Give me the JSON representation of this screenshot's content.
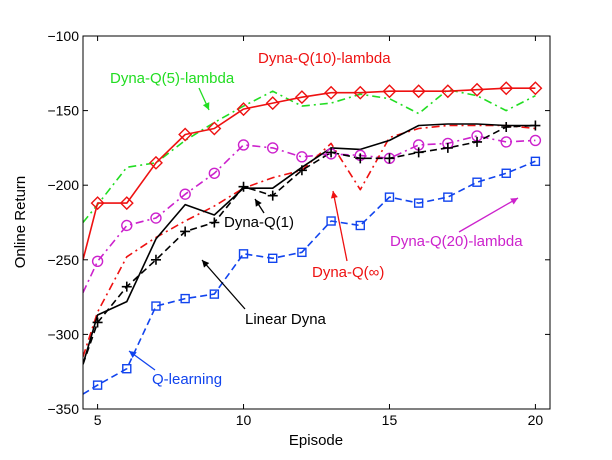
{
  "chart_data": {
    "type": "line",
    "title": "",
    "xlabel": "Episode",
    "ylabel": "Online Return",
    "xlim": [
      4.5,
      20.5
    ],
    "ylim": [
      -350,
      -100
    ],
    "xticks": [
      5,
      10,
      15,
      20
    ],
    "yticks": [
      -350,
      -300,
      -250,
      -200,
      -150,
      -100
    ],
    "grid": false,
    "legend": "none",
    "series": [
      {
        "name": "Dyna-Q(5)-lambda",
        "color": "#22dd22",
        "style": "dashdot",
        "marker": "none",
        "x": [
          4.5,
          5,
          6,
          7,
          8,
          9,
          10,
          11,
          12,
          13,
          14,
          15,
          16,
          17,
          18,
          19,
          20
        ],
        "y": [
          -225,
          -213,
          -188,
          -185,
          -170,
          -158,
          -147,
          -137,
          -147,
          -145,
          -139,
          -142,
          -152,
          -136,
          -140,
          -150,
          -140
        ]
      },
      {
        "name": "Dyna-Q(10)-lambda",
        "color": "#ee1111",
        "style": "solid",
        "marker": "diamond",
        "x": [
          4.5,
          5,
          6,
          7,
          8,
          9,
          10,
          11,
          12,
          13,
          14,
          15,
          16,
          17,
          18,
          19,
          20
        ],
        "y": [
          -250,
          -212,
          -212,
          -185,
          -166,
          -162,
          -149,
          -145,
          -141,
          -138,
          -138,
          -137,
          -137,
          -137,
          -136,
          -135,
          -135
        ]
      },
      {
        "name": "Dyna-Q(20)-lambda",
        "color": "#cc22cc",
        "style": "dashdot",
        "marker": "circle",
        "x": [
          4.5,
          5,
          6,
          7,
          8,
          9,
          10,
          11,
          12,
          13,
          14,
          15,
          16,
          17,
          18,
          19,
          20
        ],
        "y": [
          -272,
          -251,
          -227,
          -222,
          -206,
          -192,
          -173,
          -175,
          -181,
          -179,
          -180,
          -182,
          -173,
          -172,
          -167,
          -171,
          -170
        ]
      },
      {
        "name": "Dyna-Q(∞)",
        "color": "#ee1111",
        "style": "dashdot",
        "marker": "none",
        "x": [
          4.5,
          5,
          6,
          7,
          8,
          9,
          10,
          11,
          12,
          13,
          14,
          15,
          16,
          17,
          18,
          19,
          20
        ],
        "y": [
          -315,
          -285,
          -248,
          -235,
          -224,
          -214,
          -202,
          -195,
          -190,
          -172,
          -203,
          -168,
          -162,
          -160,
          -160,
          -160,
          -162
        ]
      },
      {
        "name": "Linear Dyna",
        "color": "#000000",
        "style": "solid",
        "marker": "none",
        "x": [
          4.5,
          5,
          6,
          7,
          8,
          9,
          10,
          11,
          12,
          13,
          14,
          15,
          16,
          17,
          18,
          19,
          20
        ],
        "y": [
          -320,
          -287,
          -278,
          -236,
          -213,
          -220,
          -202,
          -202,
          -188,
          -175,
          -176,
          -170,
          -160,
          -159,
          -159,
          -160,
          -160
        ]
      },
      {
        "name": "Dyna-Q(1)",
        "color": "#000000",
        "style": "dashed",
        "marker": "plus",
        "x": [
          4.5,
          5,
          6,
          7,
          8,
          9,
          10,
          11,
          12,
          13,
          14,
          15,
          16,
          17,
          18,
          19,
          20
        ],
        "y": [
          -320,
          -292,
          -268,
          -250,
          -231,
          -225,
          -201,
          -207,
          -190,
          -178,
          -182,
          -182,
          -178,
          -175,
          -171,
          -161,
          -160
        ]
      },
      {
        "name": "Q-learning",
        "color": "#1144ee",
        "style": "dashed",
        "marker": "square",
        "x": [
          4.5,
          5,
          6,
          7,
          8,
          9,
          10,
          11,
          12,
          13,
          14,
          15,
          16,
          17,
          18,
          19,
          20
        ],
        "y": [
          -340,
          -334,
          -323,
          -281,
          -276,
          -273,
          -246,
          -249,
          -245,
          -224,
          -227,
          -208,
          -212,
          -208,
          -198,
          -192,
          -184
        ]
      }
    ],
    "annotations": [
      {
        "text": "Dyna-Q(10)-lambda",
        "color": "#ee1111",
        "series": "Dyna-Q(10)-lambda"
      },
      {
        "text": "Dyna-Q(5)-lambda",
        "color": "#22dd22",
        "series": "Dyna-Q(5)-lambda"
      },
      {
        "text": "Dyna-Q(1)",
        "color": "#000000",
        "series": "Dyna-Q(1)"
      },
      {
        "text": "Dyna-Q(20)-lambda",
        "color": "#cc22cc",
        "series": "Dyna-Q(20)-lambda"
      },
      {
        "text": "Dyna-Q(∞)",
        "color": "#ee1111",
        "series": "Dyna-Q(∞)"
      },
      {
        "text": "Linear Dyna",
        "color": "#000000",
        "series": "Linear Dyna"
      },
      {
        "text": "Q-learning",
        "color": "#1144ee",
        "series": "Q-learning"
      }
    ]
  }
}
